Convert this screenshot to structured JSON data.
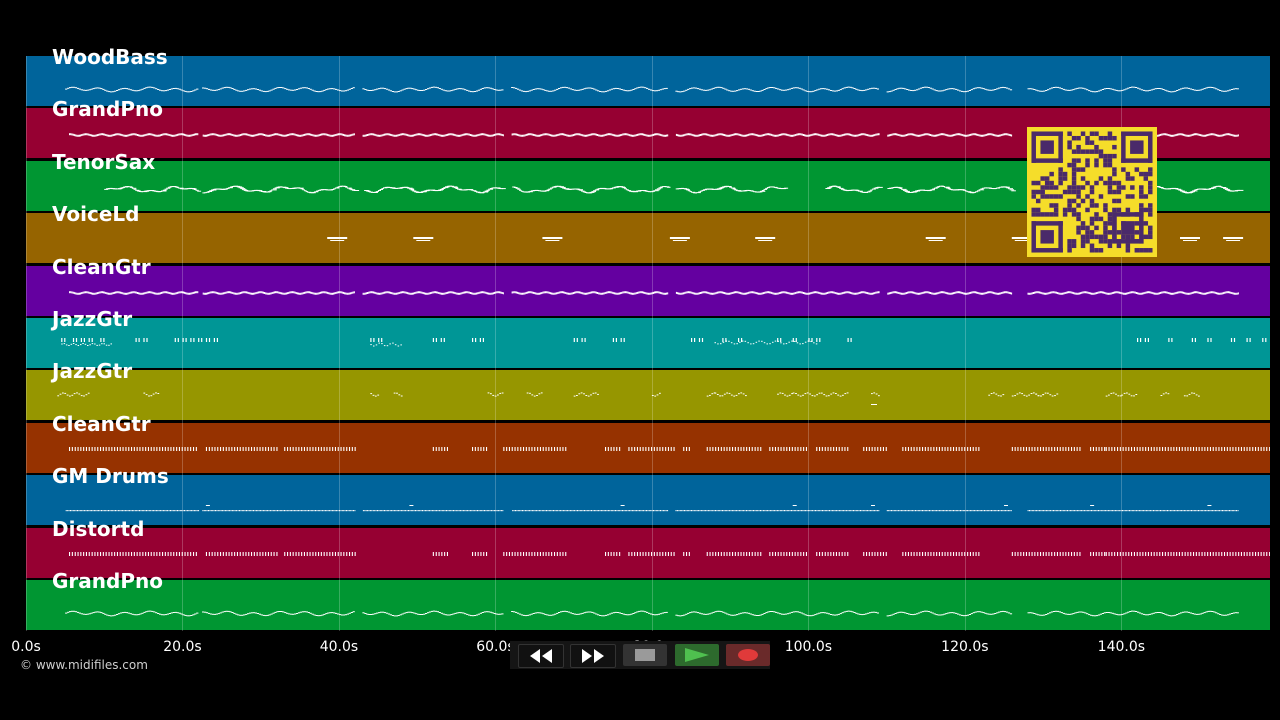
{
  "timeline": {
    "duration_seconds": 159,
    "ticks": [
      "0.0s",
      "20.0s",
      "40.0s",
      "60.0s",
      "80.0s",
      "100.0s",
      "120.0s",
      "140.0s"
    ],
    "tick_values": [
      0,
      20,
      40,
      60,
      80,
      100,
      120,
      140
    ]
  },
  "tracks": [
    {
      "name": "WoodBass",
      "color": "#00649b",
      "pattern": "wave"
    },
    {
      "name": "GrandPno",
      "color": "#960032",
      "pattern": "dense"
    },
    {
      "name": "TenorSax",
      "color": "#009632",
      "pattern": "melody"
    },
    {
      "name": "VoiceLd",
      "color": "#966400",
      "pattern": "sparse"
    },
    {
      "name": "CleanGtr",
      "color": "#6400a0",
      "pattern": "dense"
    },
    {
      "name": "JazzGtr",
      "color": "#009696",
      "pattern": "chords"
    },
    {
      "name": "JazzGtr",
      "color": "#969600",
      "pattern": "licks"
    },
    {
      "name": "CleanGtr",
      "color": "#963200",
      "pattern": "chords2"
    },
    {
      "name": "GM Drums",
      "color": "#00649b",
      "pattern": "drums"
    },
    {
      "name": "Distortd",
      "color": "#960032",
      "pattern": "chords2"
    },
    {
      "name": "GrandPno",
      "color": "#009632",
      "pattern": "wave"
    }
  ],
  "transport": {
    "rewind_icon": "rewind-icon",
    "fastforward_icon": "fast-forward-icon",
    "stop_icon": "stop-icon",
    "play_icon": "play-icon",
    "record_icon": "record-icon"
  },
  "footer": {
    "copyright": "© www.midifiles.com"
  },
  "colors": {
    "background": "#000000",
    "note": "#ffffff",
    "qr_bg": "#f5dd2a",
    "qr_fg": "#4a2a6a"
  }
}
